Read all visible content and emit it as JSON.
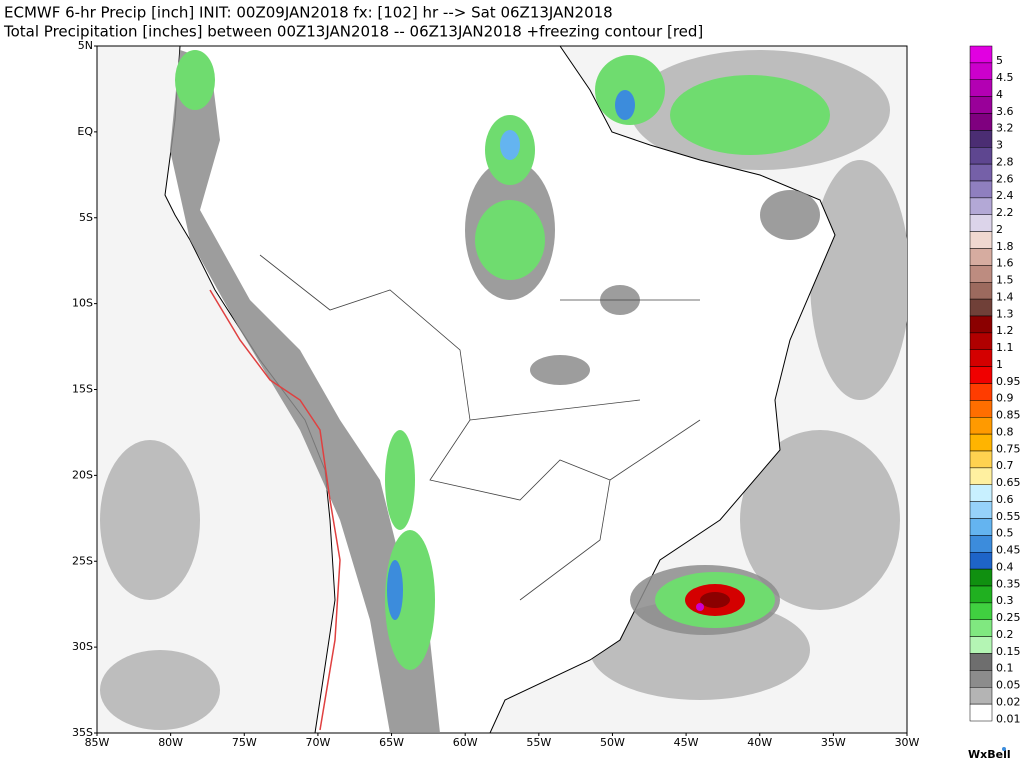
{
  "header": {
    "line1": "ECMWF 6-hr Precip [inch] INIT: 00Z09JAN2018 fx: [102] hr --> Sat 06Z13JAN2018",
    "line2": "Total Precipitation [inches] between 00Z13JAN2018 -- 06Z13JAN2018 +freezing contour [red]"
  },
  "lat_labels": [
    "5N",
    "EQ",
    "5S",
    "10S",
    "15S",
    "20S",
    "25S",
    "30S",
    "35S"
  ],
  "lon_labels": [
    "85W",
    "80W",
    "75W",
    "70W",
    "65W",
    "60W",
    "55W",
    "50W",
    "45W",
    "40W",
    "35W",
    "30W"
  ],
  "colorbar": [
    {
      "label": "5",
      "color": "#e100e1"
    },
    {
      "label": "4.5",
      "color": "#cc00cc"
    },
    {
      "label": "4",
      "color": "#b300b3"
    },
    {
      "label": "3.6",
      "color": "#990099"
    },
    {
      "label": "3.2",
      "color": "#7f007f"
    },
    {
      "label": "3",
      "color": "#4b2d73"
    },
    {
      "label": "2.8",
      "color": "#5e4690"
    },
    {
      "label": "2.6",
      "color": "#7560a8"
    },
    {
      "label": "2.4",
      "color": "#8f7fbf"
    },
    {
      "label": "2.2",
      "color": "#b3a8d6"
    },
    {
      "label": "2",
      "color": "#dcd4ea"
    },
    {
      "label": "1.8",
      "color": "#f0d8d0"
    },
    {
      "label": "1.6",
      "color": "#d6aca0"
    },
    {
      "label": "1.5",
      "color": "#bd8c80"
    },
    {
      "label": "1.4",
      "color": "#9c6a5e"
    },
    {
      "label": "1.3",
      "color": "#704038"
    },
    {
      "label": "1.2",
      "color": "#8b0000"
    },
    {
      "label": "1.1",
      "color": "#b00000"
    },
    {
      "label": "1",
      "color": "#d40000"
    },
    {
      "label": "0.95",
      "color": "#f00000"
    },
    {
      "label": "0.9",
      "color": "#ff3c00"
    },
    {
      "label": "0.85",
      "color": "#ff6e00"
    },
    {
      "label": "0.8",
      "color": "#ff9a00"
    },
    {
      "label": "0.75",
      "color": "#ffb400"
    },
    {
      "label": "0.7",
      "color": "#ffd250"
    },
    {
      "label": "0.65",
      "color": "#fff0a0"
    },
    {
      "label": "0.6",
      "color": "#c8f0ff"
    },
    {
      "label": "0.55",
      "color": "#96d2fa"
    },
    {
      "label": "0.5",
      "color": "#64b4f0"
    },
    {
      "label": "0.45",
      "color": "#3c8cdc"
    },
    {
      "label": "0.4",
      "color": "#1e64c8"
    },
    {
      "label": "0.35",
      "color": "#109010"
    },
    {
      "label": "0.3",
      "color": "#20b020"
    },
    {
      "label": "0.25",
      "color": "#40d040"
    },
    {
      "label": "0.2",
      "color": "#80e880"
    },
    {
      "label": "0.15",
      "color": "#b4f5b4"
    },
    {
      "label": "0.1",
      "color": "#6e6e6e"
    },
    {
      "label": "0.05",
      "color": "#8c8c8c"
    },
    {
      "label": "0.02",
      "color": "#b4b4b4"
    },
    {
      "label": "0.01",
      "color": "#ffffff"
    }
  ],
  "credit": "WxBell"
}
